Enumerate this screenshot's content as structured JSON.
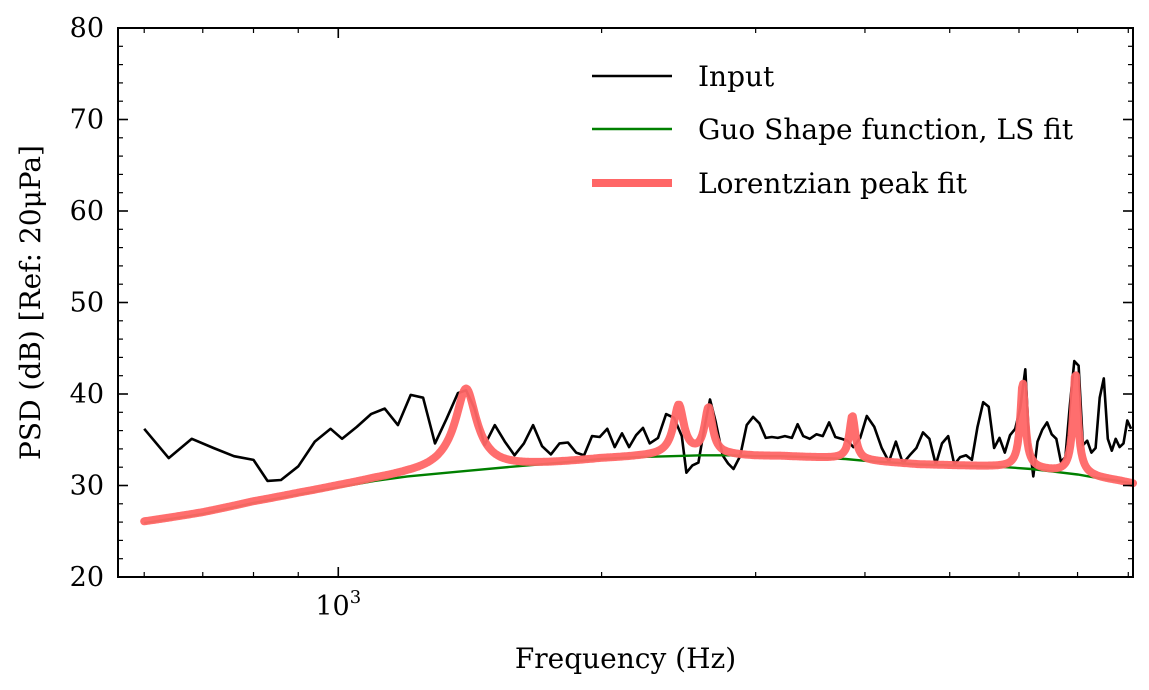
{
  "chart_data": {
    "type": "line",
    "xlabel": "Frequency (Hz)",
    "ylabel": "PSD (dB) [Ref: 20μPa]",
    "xscale": "log",
    "xlim": [
      560,
      8100
    ],
    "ylim": [
      20,
      80
    ],
    "y_ticks": [
      20,
      30,
      40,
      50,
      60,
      70,
      80
    ],
    "x_tick_label": {
      "base": "10",
      "exp": "3",
      "value": 1000
    },
    "grid": false,
    "legend_position": "top-right",
    "series": [
      {
        "name": "Input",
        "color": "#000000",
        "points": [
          [
            600,
            36.2
          ],
          [
            640,
            33.0
          ],
          [
            680,
            35.1
          ],
          [
            720,
            34.1
          ],
          [
            760,
            33.2
          ],
          [
            800,
            32.8
          ],
          [
            830,
            30.5
          ],
          [
            860,
            30.6
          ],
          [
            900,
            32.1
          ],
          [
            940,
            34.8
          ],
          [
            980,
            36.2
          ],
          [
            1010,
            35.1
          ],
          [
            1050,
            36.4
          ],
          [
            1090,
            37.8
          ],
          [
            1130,
            38.4
          ],
          [
            1170,
            36.6
          ],
          [
            1210,
            39.9
          ],
          [
            1250,
            39.6
          ],
          [
            1290,
            34.6
          ],
          [
            1330,
            37.3
          ],
          [
            1370,
            40.1
          ],
          [
            1400,
            40.4
          ],
          [
            1430,
            38.5
          ],
          [
            1470,
            34.4
          ],
          [
            1510,
            36.6
          ],
          [
            1550,
            34.8
          ],
          [
            1590,
            33.3
          ],
          [
            1630,
            34.6
          ],
          [
            1670,
            36.6
          ],
          [
            1710,
            34.3
          ],
          [
            1750,
            33.4
          ],
          [
            1790,
            34.6
          ],
          [
            1830,
            34.7
          ],
          [
            1870,
            33.6
          ],
          [
            1910,
            33.3
          ],
          [
            1950,
            35.4
          ],
          [
            1990,
            35.3
          ],
          [
            2030,
            36.2
          ],
          [
            2070,
            34.2
          ],
          [
            2110,
            35.7
          ],
          [
            2150,
            34.2
          ],
          [
            2190,
            35.5
          ],
          [
            2230,
            36.3
          ],
          [
            2270,
            34.6
          ],
          [
            2320,
            35.2
          ],
          [
            2370,
            37.8
          ],
          [
            2420,
            37.4
          ],
          [
            2470,
            35.4
          ],
          [
            2500,
            31.4
          ],
          [
            2540,
            32.2
          ],
          [
            2580,
            32.5
          ],
          [
            2620,
            36.2
          ],
          [
            2660,
            39.4
          ],
          [
            2700,
            37.0
          ],
          [
            2750,
            33.3
          ],
          [
            2790,
            32.4
          ],
          [
            2830,
            31.8
          ],
          [
            2880,
            33.2
          ],
          [
            2930,
            36.6
          ],
          [
            2980,
            37.5
          ],
          [
            3030,
            36.8
          ],
          [
            3080,
            35.2
          ],
          [
            3130,
            35.3
          ],
          [
            3180,
            35.2
          ],
          [
            3240,
            35.4
          ],
          [
            3300,
            35.2
          ],
          [
            3350,
            36.7
          ],
          [
            3400,
            35.4
          ],
          [
            3460,
            35.1
          ],
          [
            3520,
            35.6
          ],
          [
            3580,
            35.4
          ],
          [
            3640,
            36.9
          ],
          [
            3700,
            35.3
          ],
          [
            3760,
            35.1
          ],
          [
            3820,
            34.9
          ],
          [
            3880,
            34.2
          ],
          [
            3950,
            35.2
          ],
          [
            4020,
            37.6
          ],
          [
            4100,
            36.4
          ],
          [
            4180,
            34.1
          ],
          [
            4260,
            32.6
          ],
          [
            4340,
            34.8
          ],
          [
            4420,
            32.4
          ],
          [
            4500,
            33.3
          ],
          [
            4580,
            34.1
          ],
          [
            4660,
            35.8
          ],
          [
            4740,
            35.1
          ],
          [
            4820,
            32.3
          ],
          [
            4900,
            34.6
          ],
          [
            4980,
            35.4
          ],
          [
            5060,
            32.3
          ],
          [
            5140,
            33.1
          ],
          [
            5220,
            33.3
          ],
          [
            5300,
            32.8
          ],
          [
            5380,
            36.4
          ],
          [
            5460,
            39.1
          ],
          [
            5540,
            38.6
          ],
          [
            5620,
            34.1
          ],
          [
            5700,
            35.2
          ],
          [
            5780,
            33.6
          ],
          [
            5860,
            35.5
          ],
          [
            5940,
            36.2
          ],
          [
            6020,
            38.5
          ],
          [
            6100,
            42.7
          ],
          [
            6160,
            34.9
          ],
          [
            6230,
            31.0
          ],
          [
            6300,
            34.8
          ],
          [
            6380,
            36.1
          ],
          [
            6460,
            36.9
          ],
          [
            6540,
            35.6
          ],
          [
            6620,
            35.1
          ],
          [
            6700,
            32.6
          ],
          [
            6780,
            33.1
          ],
          [
            6860,
            38.8
          ],
          [
            6940,
            43.6
          ],
          [
            7020,
            43.1
          ],
          [
            7100,
            34.4
          ],
          [
            7180,
            34.9
          ],
          [
            7260,
            33.6
          ],
          [
            7340,
            34.1
          ],
          [
            7420,
            39.6
          ],
          [
            7500,
            41.7
          ],
          [
            7580,
            35.1
          ],
          [
            7660,
            33.8
          ],
          [
            7740,
            35.1
          ],
          [
            7820,
            34.2
          ],
          [
            7900,
            34.6
          ],
          [
            7980,
            37.1
          ],
          [
            8060,
            36.2
          ]
        ]
      },
      {
        "name": "Guo Shape function, LS fit",
        "color": "#008000",
        "points": [
          [
            600,
            25.9
          ],
          [
            700,
            26.9
          ],
          [
            800,
            28.1
          ],
          [
            900,
            29.0
          ],
          [
            1000,
            29.8
          ],
          [
            1100,
            30.5
          ],
          [
            1200,
            31.0
          ],
          [
            1300,
            31.3
          ],
          [
            1400,
            31.6
          ],
          [
            1600,
            32.1
          ],
          [
            1800,
            32.5
          ],
          [
            2000,
            32.9
          ],
          [
            2200,
            33.1
          ],
          [
            2400,
            33.2
          ],
          [
            2600,
            33.3
          ],
          [
            2800,
            33.3
          ],
          [
            3000,
            33.2
          ],
          [
            3200,
            33.2
          ],
          [
            3400,
            33.1
          ],
          [
            3600,
            33.0
          ],
          [
            3800,
            32.9
          ],
          [
            4000,
            32.7
          ],
          [
            4300,
            32.5
          ],
          [
            4600,
            32.3
          ],
          [
            5000,
            32.2
          ],
          [
            5400,
            32.1
          ],
          [
            5800,
            32.0
          ],
          [
            6200,
            31.8
          ],
          [
            6600,
            31.5
          ],
          [
            7000,
            31.2
          ],
          [
            7400,
            30.8
          ],
          [
            7800,
            30.5
          ],
          [
            8100,
            30.2
          ]
        ]
      },
      {
        "name": "Lorentzian peak fit",
        "color": "#ff6666",
        "points": []
      }
    ],
    "lorentzian_peaks": [
      {
        "f0": 1400,
        "gamma": 30,
        "height": 9.0
      },
      {
        "f0": 2450,
        "gamma": 30,
        "height": 5.6
      },
      {
        "f0": 2650,
        "gamma": 25,
        "height": 5.2
      },
      {
        "f0": 3870,
        "gamma": 28,
        "height": 4.8
      },
      {
        "f0": 6060,
        "gamma": 28,
        "height": 9.4
      },
      {
        "f0": 6960,
        "gamma": 28,
        "height": 11.2
      }
    ]
  }
}
